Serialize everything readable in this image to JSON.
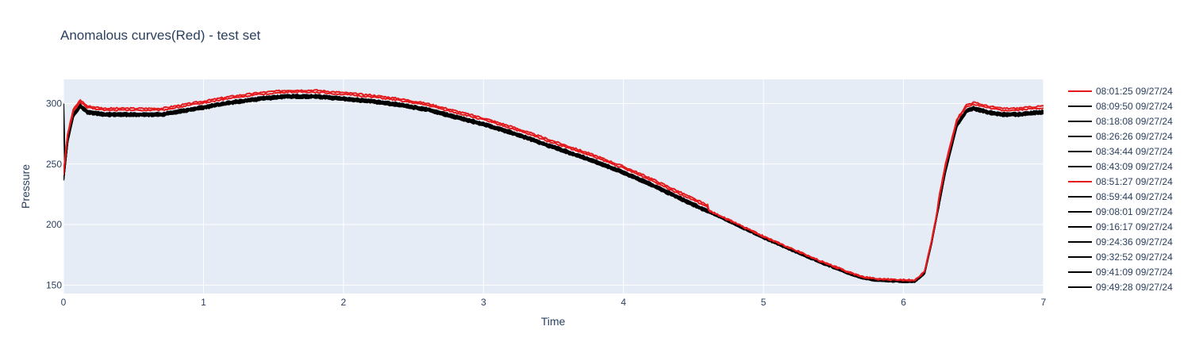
{
  "chart_data": {
    "type": "line",
    "title": "Anomalous curves(Red) - test set",
    "xlabel": "Time",
    "ylabel": "Pressure",
    "xlim": [
      0,
      7
    ],
    "ylim": [
      143,
      320
    ],
    "xticks": [
      0,
      1,
      2,
      3,
      4,
      5,
      6,
      7
    ],
    "yticks": [
      150,
      200,
      250,
      300
    ],
    "grid": true,
    "legend_position": "right",
    "colors": {
      "anomalous": "#e41a1c",
      "normal": "#000000",
      "plot_bg": "#e5ecf6",
      "grid": "#ffffff"
    },
    "series": [
      {
        "name": "08:01:25 09/27/24",
        "color": "#e41a1c",
        "offset": 3.5
      },
      {
        "name": "08:09:50 09/27/24",
        "color": "#000000",
        "offset": 0.0
      },
      {
        "name": "08:18:08 09/27/24",
        "color": "#000000",
        "offset": -0.5
      },
      {
        "name": "08:26:26 09/27/24",
        "color": "#000000",
        "offset": 0.6
      },
      {
        "name": "08:34:44 09/27/24",
        "color": "#000000",
        "offset": -1.0
      },
      {
        "name": "08:43:09 09/27/24",
        "color": "#000000",
        "offset": 0.3
      },
      {
        "name": "08:51:27 09/27/24",
        "color": "#e41a1c",
        "offset": 5.0
      },
      {
        "name": "08:59:44 09/27/24",
        "color": "#000000",
        "offset": -0.8
      },
      {
        "name": "09:08:01 09/27/24",
        "color": "#000000",
        "offset": 1.0
      },
      {
        "name": "09:16:17 09/27/24",
        "color": "#000000",
        "offset": -0.3
      },
      {
        "name": "09:24:36 09/27/24",
        "color": "#000000",
        "offset": 0.8
      },
      {
        "name": "09:32:52 09/27/24",
        "color": "#000000",
        "offset": -1.2
      },
      {
        "name": "09:41:09 09/27/24",
        "color": "#000000",
        "offset": 0.2
      },
      {
        "name": "09:49:28 09/27/24",
        "color": "#000000",
        "offset": -0.6
      }
    ],
    "base_curve": [
      [
        0.0,
        238
      ],
      [
        0.03,
        270
      ],
      [
        0.07,
        290
      ],
      [
        0.12,
        298
      ],
      [
        0.14,
        296
      ],
      [
        0.17,
        293
      ],
      [
        0.3,
        291
      ],
      [
        0.5,
        291
      ],
      [
        0.7,
        291
      ],
      [
        0.9,
        295
      ],
      [
        1.0,
        297
      ],
      [
        1.2,
        301
      ],
      [
        1.4,
        304
      ],
      [
        1.6,
        306
      ],
      [
        1.8,
        306
      ],
      [
        2.0,
        304
      ],
      [
        2.2,
        302
      ],
      [
        2.4,
        299
      ],
      [
        2.6,
        295
      ],
      [
        2.8,
        289
      ],
      [
        3.0,
        283
      ],
      [
        3.2,
        276
      ],
      [
        3.4,
        268
      ],
      [
        3.6,
        260
      ],
      [
        3.8,
        252
      ],
      [
        4.0,
        243
      ],
      [
        4.2,
        233
      ],
      [
        4.4,
        222
      ],
      [
        4.6,
        211
      ],
      [
        4.8,
        200
      ],
      [
        5.0,
        189
      ],
      [
        5.2,
        179
      ],
      [
        5.4,
        169
      ],
      [
        5.6,
        160
      ],
      [
        5.7,
        156
      ],
      [
        5.8,
        154
      ],
      [
        6.0,
        153
      ],
      [
        6.08,
        153
      ],
      [
        6.15,
        160
      ],
      [
        6.2,
        185
      ],
      [
        6.3,
        245
      ],
      [
        6.38,
        282
      ],
      [
        6.45,
        294
      ],
      [
        6.5,
        296
      ],
      [
        6.6,
        293
      ],
      [
        6.7,
        291
      ],
      [
        6.8,
        291
      ],
      [
        6.9,
        292
      ],
      [
        7.0,
        293
      ]
    ]
  }
}
